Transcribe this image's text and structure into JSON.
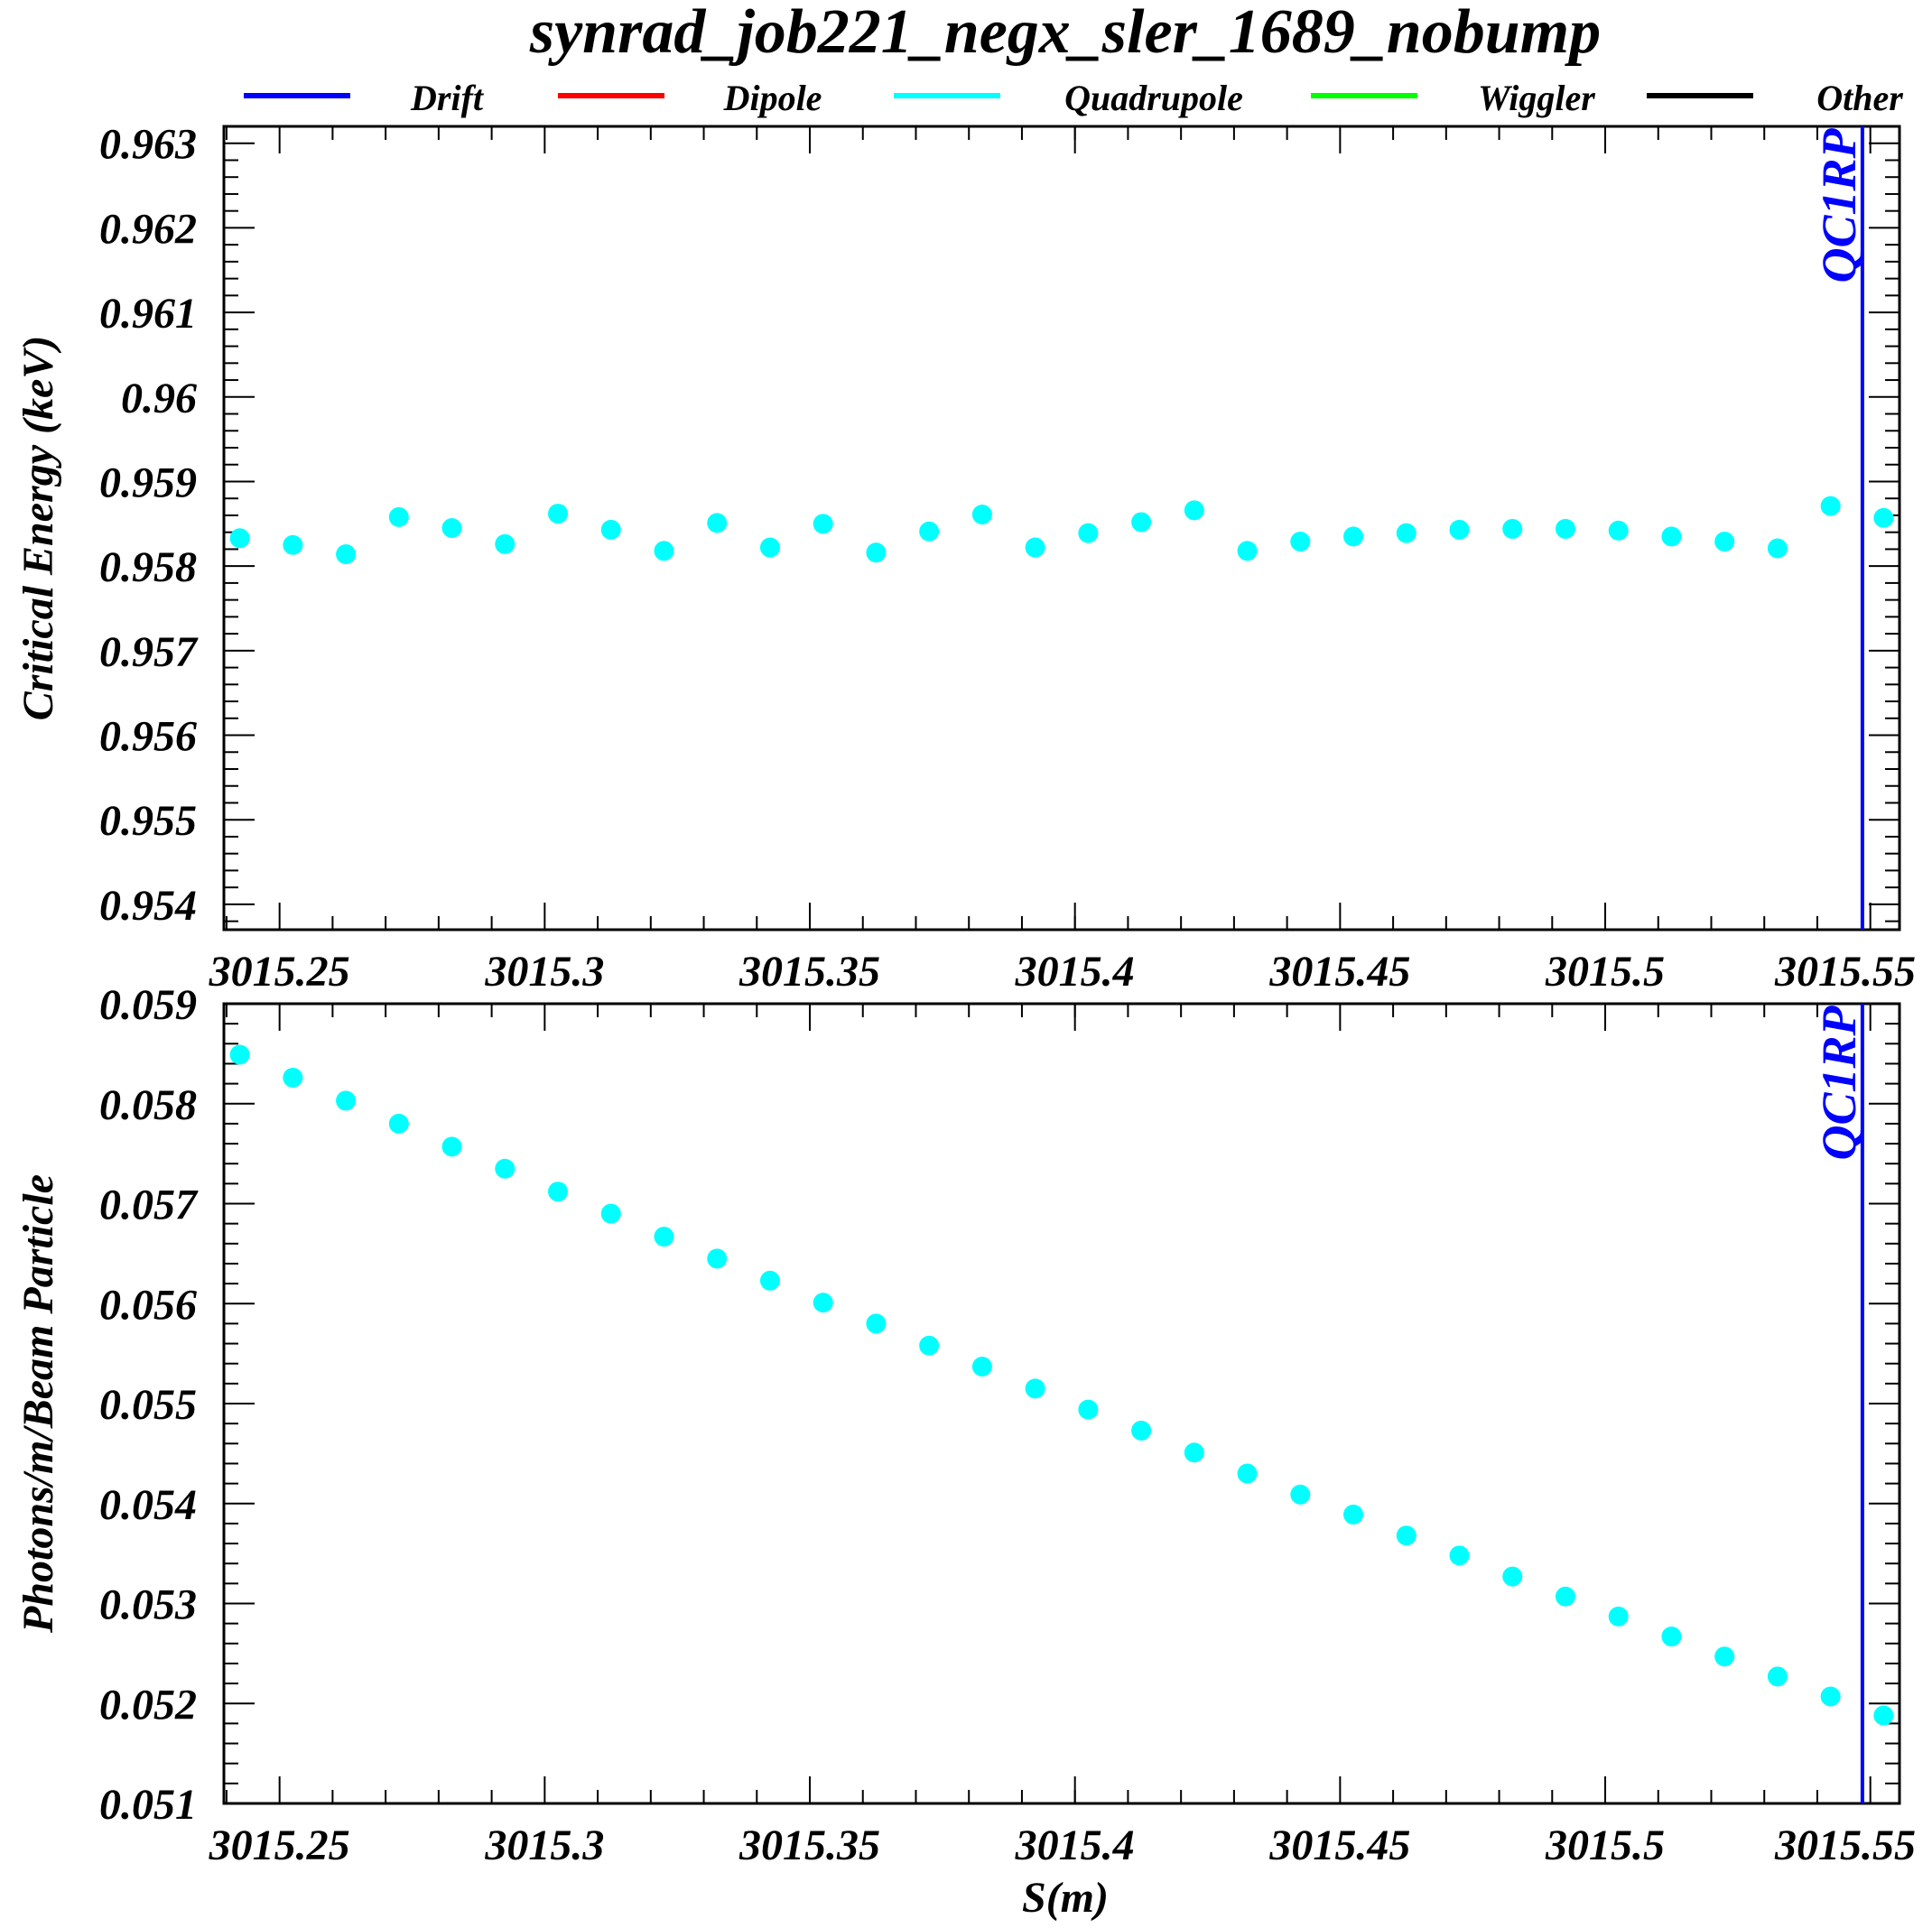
{
  "chart_data": {
    "title": "synrad_job221_negx_sler_1689_nobump",
    "legend": {
      "placement": "top",
      "items": [
        {
          "label": "Drift",
          "color": "#0000ff"
        },
        {
          "label": "Dipole",
          "color": "#ff0000"
        },
        {
          "label": "Quadrupole",
          "color": "#00ffff"
        },
        {
          "label": "Wiggler",
          "color": "#00ff00"
        },
        {
          "label": "Other",
          "color": "#000000"
        }
      ]
    },
    "x_ticks": [
      "3015.25",
      "3015.3",
      "3015.35",
      "3015.4",
      "3015.45",
      "3015.5",
      "3015.55"
    ],
    "x_tick_values": [
      3015.25,
      3015.3,
      3015.35,
      3015.4,
      3015.45,
      3015.5,
      3015.55
    ],
    "xlabel": "S(m)",
    "charts": [
      {
        "type": "scatter",
        "ylabel": "Critical Energy (keV)",
        "xlim": [
          3015.2395,
          3015.5555
        ],
        "ylim": [
          0.9537,
          0.9632
        ],
        "y_ticks": [
          "0.963",
          "0.962",
          "0.961",
          "0.96",
          "0.959",
          "0.958",
          "0.957",
          "0.956",
          "0.955",
          "0.954"
        ],
        "y_tick_values": [
          0.963,
          0.962,
          0.961,
          0.96,
          0.959,
          0.958,
          0.957,
          0.956,
          0.955,
          0.954
        ],
        "marker": {
          "label": "QC1RP",
          "x": 3015.5485,
          "color": "#0000ff"
        },
        "series": [
          {
            "name": "Quadrupole",
            "color": "#00ffff",
            "x": [
              3015.2425,
              3015.2525,
              3015.2625,
              3015.2725,
              3015.2825,
              3015.2925,
              3015.3025,
              3015.3125,
              3015.3225,
              3015.3325,
              3015.3425,
              3015.3525,
              3015.3625,
              3015.3725,
              3015.3825,
              3015.3925,
              3015.4025,
              3015.4125,
              3015.4225,
              3015.4325,
              3015.4425,
              3015.4525,
              3015.4625,
              3015.4725,
              3015.4825,
              3015.4925,
              3015.5025,
              3015.5125,
              3015.5225,
              3015.5325,
              3015.5425,
              3015.5525
            ],
            "y": [
              0.95833,
              0.95825,
              0.95814,
              0.95858,
              0.95845,
              0.95826,
              0.95862,
              0.95843,
              0.95818,
              0.95851,
              0.95822,
              0.9585,
              0.95816,
              0.95841,
              0.95861,
              0.95822,
              0.95839,
              0.95852,
              0.95866,
              0.95818,
              0.95829,
              0.95835,
              0.95839,
              0.95843,
              0.95844,
              0.95844,
              0.95842,
              0.95835,
              0.95829,
              0.95821,
              0.95871,
              0.95857
            ]
          }
        ]
      },
      {
        "type": "scatter",
        "ylabel": "Photons/m/Beam Particle",
        "xlim": [
          3015.2395,
          3015.5555
        ],
        "ylim": [
          0.051,
          0.059
        ],
        "y_ticks": [
          "0.059",
          "0.058",
          "0.057",
          "0.056",
          "0.055",
          "0.054",
          "0.053",
          "0.052",
          "0.051"
        ],
        "y_tick_values": [
          0.059,
          0.058,
          0.057,
          0.056,
          0.055,
          0.054,
          0.053,
          0.052,
          0.051
        ],
        "marker": {
          "label": "QC1RP",
          "x": 3015.5485,
          "color": "#0000ff"
        },
        "series": [
          {
            "name": "Quadrupole",
            "color": "#00ffff",
            "x": [
              3015.2425,
              3015.2525,
              3015.2625,
              3015.2725,
              3015.2825,
              3015.2925,
              3015.3025,
              3015.3125,
              3015.3225,
              3015.3325,
              3015.3425,
              3015.3525,
              3015.3625,
              3015.3725,
              3015.3825,
              3015.3925,
              3015.4025,
              3015.4125,
              3015.4225,
              3015.4325,
              3015.4425,
              3015.4525,
              3015.4625,
              3015.4725,
              3015.4825,
              3015.4925,
              3015.5025,
              3015.5125,
              3015.5225,
              3015.5325,
              3015.5425,
              3015.5525
            ],
            "y": [
              0.05849,
              0.05826,
              0.05803,
              0.0578,
              0.05757,
              0.05735,
              0.05712,
              0.0569,
              0.05667,
              0.05645,
              0.05623,
              0.05601,
              0.0558,
              0.05558,
              0.05537,
              0.05515,
              0.05494,
              0.05473,
              0.05451,
              0.0543,
              0.05409,
              0.05389,
              0.05368,
              0.05348,
              0.05327,
              0.05307,
              0.05287,
              0.05267,
              0.05247,
              0.05227,
              0.05207,
              0.05188
            ]
          }
        ]
      }
    ]
  }
}
